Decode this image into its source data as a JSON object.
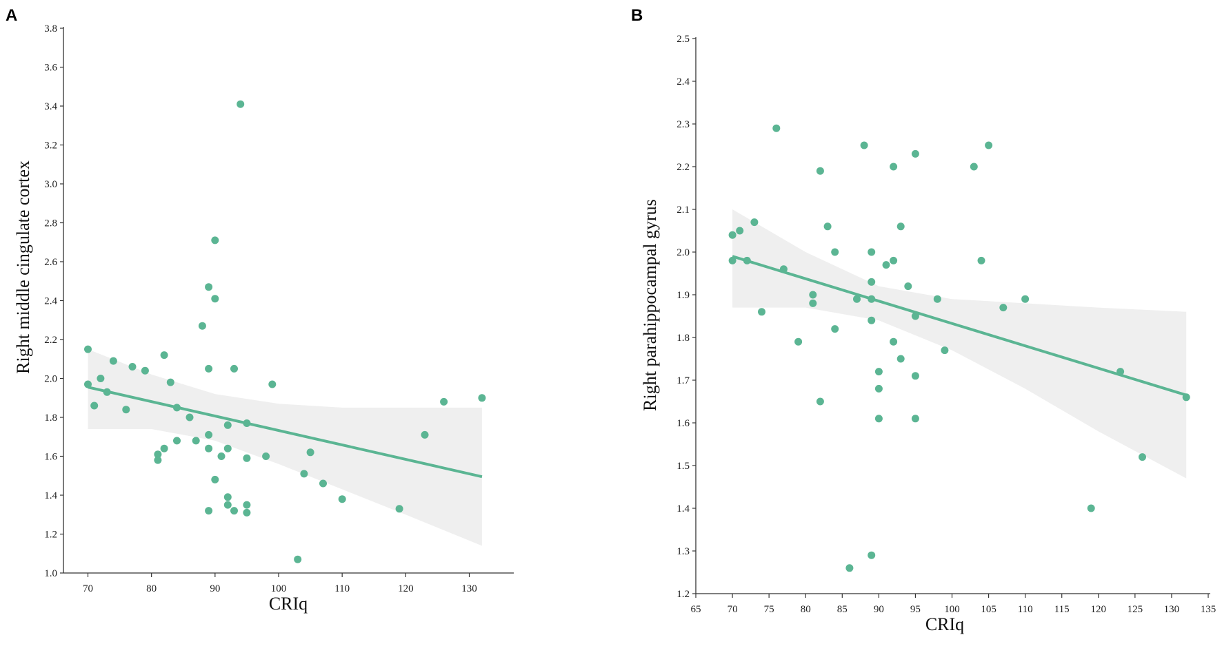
{
  "colors": {
    "point": "#5bb593",
    "line": "#5bb593",
    "band": "#efefef",
    "axis": "#333333"
  },
  "chart_data": [
    {
      "panel_label": "A",
      "type": "scatter",
      "xlabel": "CRIq",
      "ylabel": "Right middle cingulate cortex",
      "xlim": [
        65,
        137
      ],
      "ylim": [
        1.0,
        3.8
      ],
      "x_ticks": [
        70,
        80,
        90,
        100,
        110,
        120,
        130
      ],
      "y_ticks": [
        1.0,
        1.2,
        1.4,
        1.6,
        1.8,
        2.0,
        2.2,
        2.4,
        2.6,
        2.8,
        3.0,
        3.2,
        3.4,
        3.6,
        3.8
      ],
      "x_tick_labels": [
        "70",
        "80",
        "90",
        "100",
        "110",
        "120",
        "130"
      ],
      "y_tick_labels": [
        "1.0",
        "1.2",
        "1.4",
        "1.6",
        "1.8",
        "2.0",
        "2.2",
        "2.4",
        "2.6",
        "2.8",
        "3.0",
        "3.2",
        "3.4",
        "3.6",
        "3.8"
      ],
      "points": [
        [
          70,
          2.15
        ],
        [
          70,
          1.97
        ],
        [
          71,
          1.86
        ],
        [
          72,
          2.0
        ],
        [
          73,
          1.93
        ],
        [
          74,
          2.09
        ],
        [
          76,
          1.84
        ],
        [
          77,
          2.06
        ],
        [
          79,
          2.04
        ],
        [
          81,
          1.61
        ],
        [
          81,
          1.58
        ],
        [
          82,
          1.64
        ],
        [
          82,
          2.12
        ],
        [
          83,
          1.98
        ],
        [
          84,
          1.68
        ],
        [
          84,
          1.85
        ],
        [
          86,
          1.8
        ],
        [
          87,
          1.68
        ],
        [
          88,
          2.27
        ],
        [
          89,
          2.47
        ],
        [
          89,
          2.05
        ],
        [
          89,
          1.71
        ],
        [
          89,
          1.64
        ],
        [
          89,
          1.32
        ],
        [
          90,
          2.71
        ],
        [
          90,
          2.41
        ],
        [
          90,
          1.48
        ],
        [
          91,
          1.6
        ],
        [
          92,
          1.76
        ],
        [
          92,
          1.64
        ],
        [
          92,
          1.39
        ],
        [
          92,
          1.35
        ],
        [
          93,
          2.05
        ],
        [
          93,
          1.32
        ],
        [
          94,
          3.41
        ],
        [
          95,
          1.77
        ],
        [
          95,
          1.59
        ],
        [
          95,
          1.35
        ],
        [
          95,
          1.31
        ],
        [
          98,
          1.6
        ],
        [
          99,
          1.97
        ],
        [
          103,
          1.07
        ],
        [
          104,
          1.51
        ],
        [
          105,
          1.62
        ],
        [
          107,
          1.46
        ],
        [
          110,
          1.38
        ],
        [
          119,
          1.33
        ],
        [
          123,
          1.71
        ],
        [
          126,
          1.88
        ],
        [
          132,
          1.9
        ]
      ],
      "regression": {
        "x": [
          70,
          132
        ],
        "y": [
          1.955,
          1.495
        ]
      },
      "confidence_band": {
        "x": [
          70,
          80,
          90,
          100,
          110,
          120,
          132
        ],
        "upper": [
          2.15,
          2.02,
          1.92,
          1.87,
          1.85,
          1.85,
          1.85
        ],
        "lower": [
          1.74,
          1.74,
          1.68,
          1.56,
          1.43,
          1.3,
          1.14
        ]
      }
    },
    {
      "panel_label": "B",
      "type": "scatter",
      "xlabel": "CRIq",
      "ylabel": "Right parahippocampal gyrus",
      "xlim": [
        65,
        135
      ],
      "ylim": [
        1.2,
        2.5
      ],
      "x_ticks": [
        65,
        70,
        75,
        80,
        85,
        90,
        95,
        100,
        105,
        110,
        115,
        120,
        125,
        130,
        135
      ],
      "y_ticks": [
        1.2,
        1.3,
        1.4,
        1.5,
        1.6,
        1.7,
        1.8,
        1.9,
        2.0,
        2.1,
        2.2,
        2.3,
        2.4,
        2.5
      ],
      "x_tick_labels": [
        "65",
        "70",
        "75",
        "80",
        "85",
        "90",
        "95",
        "100",
        "105",
        "110",
        "115",
        "120",
        "125",
        "130",
        "135"
      ],
      "y_tick_labels": [
        "1.2",
        "1.3",
        "1.4",
        "1.5",
        "1.6",
        "1.7",
        "1.8",
        "1.9",
        "2.0",
        "2.1",
        "2.2",
        "2.3",
        "2.4",
        "2.5"
      ],
      "points": [
        [
          70,
          2.04
        ],
        [
          70,
          1.98
        ],
        [
          71,
          2.05
        ],
        [
          72,
          1.98
        ],
        [
          73,
          2.07
        ],
        [
          74,
          1.86
        ],
        [
          76,
          2.29
        ],
        [
          77,
          1.96
        ],
        [
          79,
          1.79
        ],
        [
          81,
          1.9
        ],
        [
          81,
          1.88
        ],
        [
          82,
          2.19
        ],
        [
          82,
          1.65
        ],
        [
          83,
          2.06
        ],
        [
          84,
          2.0
        ],
        [
          84,
          1.82
        ],
        [
          86,
          1.26
        ],
        [
          87,
          1.89
        ],
        [
          88,
          2.25
        ],
        [
          89,
          2.0
        ],
        [
          89,
          1.93
        ],
        [
          89,
          1.89
        ],
        [
          89,
          1.84
        ],
        [
          89,
          1.29
        ],
        [
          90,
          1.72
        ],
        [
          90,
          1.68
        ],
        [
          90,
          1.61
        ],
        [
          91,
          1.97
        ],
        [
          92,
          2.2
        ],
        [
          92,
          1.98
        ],
        [
          92,
          1.79
        ],
        [
          93,
          2.06
        ],
        [
          93,
          1.75
        ],
        [
          94,
          1.92
        ],
        [
          95,
          2.23
        ],
        [
          95,
          1.85
        ],
        [
          95,
          1.71
        ],
        [
          95,
          1.61
        ],
        [
          98,
          1.89
        ],
        [
          99,
          1.77
        ],
        [
          103,
          2.2
        ],
        [
          104,
          1.98
        ],
        [
          105,
          2.25
        ],
        [
          107,
          1.87
        ],
        [
          110,
          1.89
        ],
        [
          119,
          1.4
        ],
        [
          123,
          1.72
        ],
        [
          126,
          1.52
        ],
        [
          132,
          1.66
        ]
      ],
      "regression": {
        "x": [
          70,
          132
        ],
        "y": [
          1.99,
          1.665
        ]
      },
      "confidence_band": {
        "x": [
          70,
          80,
          90,
          100,
          110,
          120,
          132
        ],
        "upper": [
          2.1,
          2.0,
          1.92,
          1.89,
          1.88,
          1.87,
          1.86
        ],
        "lower": [
          1.87,
          1.87,
          1.84,
          1.77,
          1.68,
          1.58,
          1.47
        ]
      }
    }
  ]
}
